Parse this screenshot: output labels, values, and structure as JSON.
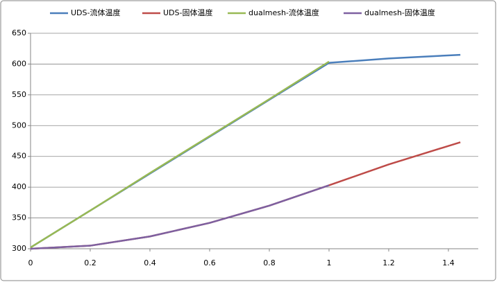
{
  "chart_data": {
    "type": "line",
    "x": [
      0,
      0.2,
      0.4,
      0.6,
      0.8,
      1,
      1.2,
      1.44
    ],
    "series": [
      {
        "name": "UDS-流体温度",
        "color": "#4a7ebb",
        "values": [
          302,
          362,
          422,
          482,
          542,
          602,
          609,
          615
        ]
      },
      {
        "name": "UDS-固体温度",
        "color": "#be4b48",
        "values": [
          300,
          305,
          320,
          342,
          370,
          403,
          437,
          473
        ]
      },
      {
        "name": "dualmesh-流体温度",
        "color": "#98b954",
        "values": [
          302,
          362,
          423,
          483,
          543,
          604,
          null,
          null
        ]
      },
      {
        "name": "dualmesh-固体温度",
        "color": "#7d60a0",
        "values": [
          300,
          305,
          320,
          342,
          370,
          403,
          null,
          null
        ]
      }
    ],
    "xlim": [
      0,
      1.5
    ],
    "xticks": [
      0,
      0.2,
      0.4,
      0.6,
      0.8,
      1,
      1.2,
      1.4
    ],
    "ylim": [
      300,
      650
    ],
    "yticks": [
      300,
      350,
      400,
      450,
      500,
      550,
      600,
      650
    ],
    "grid": true,
    "legend": "top"
  }
}
